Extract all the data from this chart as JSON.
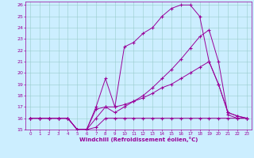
{
  "xlabel": "Windchill (Refroidissement éolien,°C)",
  "bg_color": "#cceeff",
  "line_color": "#990099",
  "grid_color": "#99cccc",
  "xlim": [
    -0.5,
    23.5
  ],
  "ylim": [
    15,
    26.3
  ],
  "yticks": [
    15,
    16,
    17,
    18,
    19,
    20,
    21,
    22,
    23,
    24,
    25,
    26
  ],
  "xticks": [
    0,
    1,
    2,
    3,
    4,
    5,
    6,
    7,
    8,
    9,
    10,
    11,
    12,
    13,
    14,
    15,
    16,
    17,
    18,
    19,
    20,
    21,
    22,
    23
  ],
  "line1_x": [
    0,
    1,
    2,
    3,
    4,
    5,
    6,
    7,
    8,
    9,
    10,
    11,
    12,
    13,
    14,
    15,
    16,
    17,
    18,
    19,
    20,
    21,
    22,
    23
  ],
  "line1_y": [
    16,
    16,
    16,
    16,
    16,
    15,
    15,
    15.2,
    16,
    16,
    16,
    16,
    16,
    16,
    16,
    16,
    16,
    16,
    16,
    16,
    16,
    16,
    16,
    16
  ],
  "line2_x": [
    0,
    1,
    2,
    3,
    4,
    5,
    6,
    7,
    8,
    9,
    10,
    11,
    12,
    13,
    14,
    15,
    16,
    17,
    18,
    19,
    20,
    21,
    22,
    23
  ],
  "line2_y": [
    16,
    16,
    16,
    16,
    16,
    15,
    15,
    16.8,
    17,
    17,
    17.2,
    17.5,
    17.8,
    18.2,
    18.7,
    19,
    19.5,
    20,
    20.5,
    21,
    19,
    16.5,
    16.2,
    16
  ],
  "line3_x": [
    0,
    1,
    2,
    3,
    4,
    5,
    6,
    7,
    8,
    9,
    10,
    11,
    12,
    13,
    14,
    15,
    16,
    17,
    18,
    19,
    20,
    21,
    22,
    23
  ],
  "line3_y": [
    16,
    16,
    16,
    16,
    16,
    15,
    15,
    17,
    19.5,
    17,
    22.3,
    22.7,
    23.5,
    24,
    25,
    25.7,
    26,
    26,
    25,
    21,
    19,
    16.5,
    16.2,
    16
  ],
  "line4_x": [
    0,
    1,
    2,
    3,
    4,
    5,
    6,
    7,
    8,
    9,
    10,
    11,
    12,
    13,
    14,
    15,
    16,
    17,
    18,
    19,
    20,
    21,
    22,
    23
  ],
  "line4_y": [
    16,
    16,
    16,
    16,
    16,
    15,
    15,
    16,
    17,
    16.5,
    17,
    17.5,
    18,
    18.7,
    19.5,
    20.3,
    21.2,
    22.2,
    23.2,
    23.8,
    21,
    16.3,
    16,
    16
  ]
}
